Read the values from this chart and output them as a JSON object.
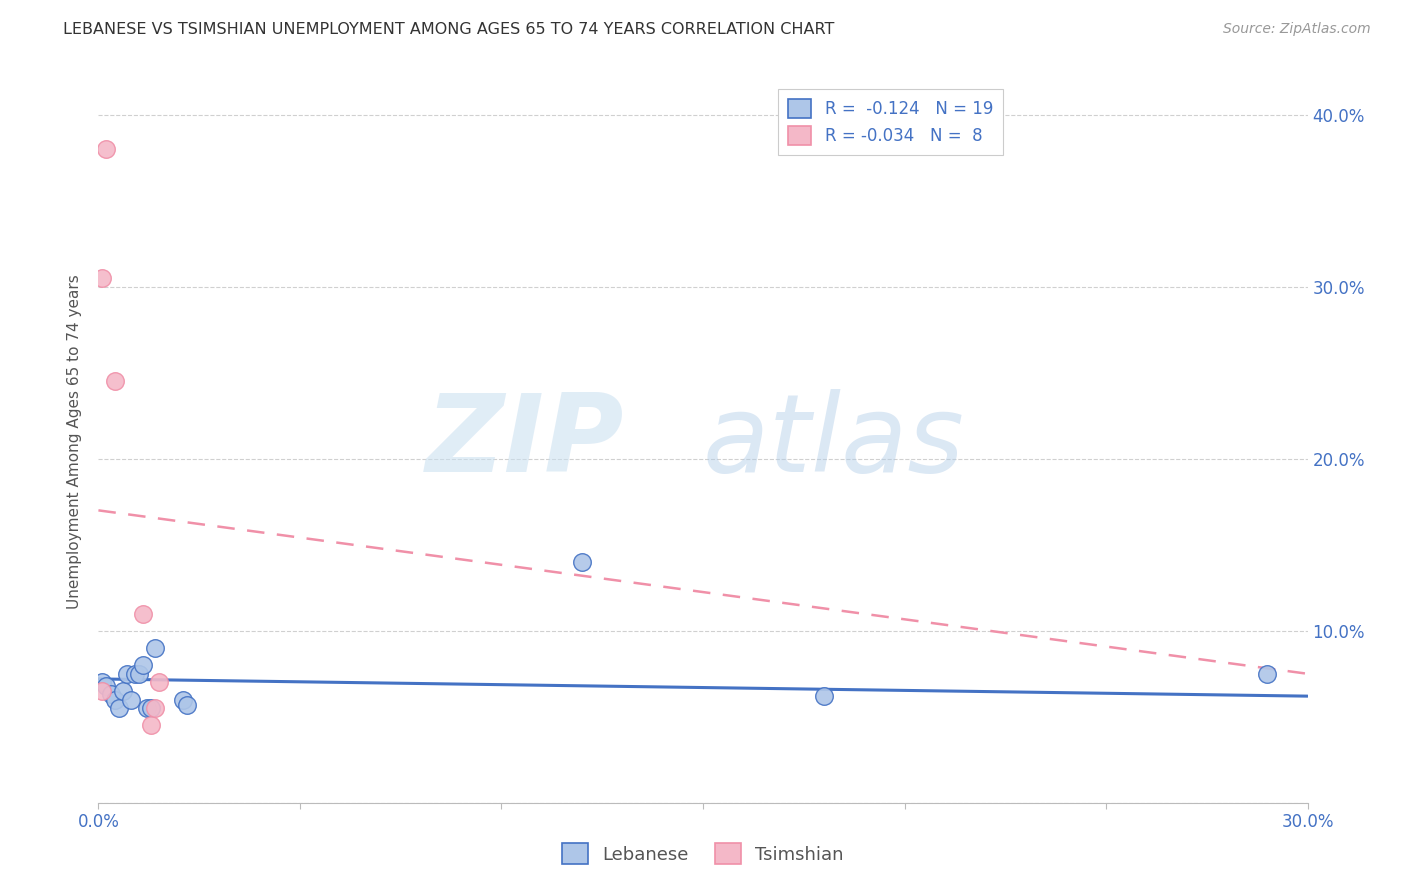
{
  "title": "LEBANESE VS TSIMSHIAN UNEMPLOYMENT AMONG AGES 65 TO 74 YEARS CORRELATION CHART",
  "source": "Source: ZipAtlas.com",
  "ylabel": "Unemployment Among Ages 65 to 74 years",
  "xlim": [
    0.0,
    0.3
  ],
  "ylim": [
    0.0,
    0.42
  ],
  "xticks": [
    0.0,
    0.05,
    0.1,
    0.15,
    0.2,
    0.25,
    0.3
  ],
  "yticks": [
    0.0,
    0.1,
    0.2,
    0.3,
    0.4
  ],
  "watermark_zip": "ZIP",
  "watermark_atlas": "atlas",
  "lebanese_color": "#aec6e8",
  "tsimshian_color": "#f4b8c8",
  "lebanese_line_color": "#4472c4",
  "tsimshian_line_color": "#f090a8",
  "lebanese_x": [
    0.001,
    0.002,
    0.003,
    0.004,
    0.005,
    0.006,
    0.007,
    0.008,
    0.009,
    0.01,
    0.011,
    0.012,
    0.013,
    0.014,
    0.021,
    0.022,
    0.12,
    0.18,
    0.29
  ],
  "lebanese_y": [
    0.07,
    0.068,
    0.063,
    0.06,
    0.055,
    0.065,
    0.075,
    0.06,
    0.075,
    0.075,
    0.08,
    0.055,
    0.055,
    0.09,
    0.06,
    0.057,
    0.14,
    0.062,
    0.075
  ],
  "tsimshian_x": [
    0.001,
    0.001,
    0.002,
    0.004,
    0.011,
    0.013,
    0.014,
    0.015
  ],
  "tsimshian_y": [
    0.065,
    0.305,
    0.38,
    0.245,
    0.11,
    0.045,
    0.055,
    0.07
  ],
  "lebanese_trend_x": [
    0.0,
    0.3
  ],
  "lebanese_trend_y": [
    0.072,
    0.062
  ],
  "tsimshian_trend_x": [
    0.0,
    0.3
  ],
  "tsimshian_trend_y": [
    0.17,
    0.075
  ],
  "background_color": "#ffffff",
  "grid_color": "#d0d0d0",
  "title_fontsize": 11.5,
  "source_fontsize": 10,
  "axis_label_fontsize": 11,
  "tick_fontsize": 12
}
